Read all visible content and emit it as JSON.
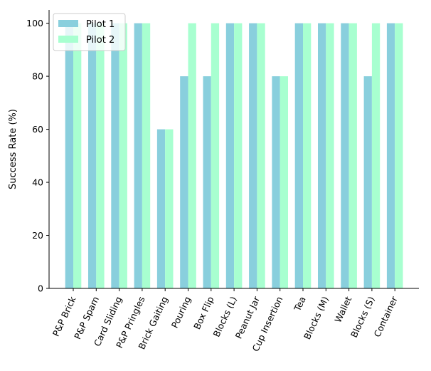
{
  "chart_data": {
    "type": "bar",
    "title": "",
    "xlabel": "",
    "ylabel": "Success Rate (%)",
    "ylim": [
      0,
      105
    ],
    "yticks": [
      0,
      20,
      40,
      60,
      80,
      100
    ],
    "grid": false,
    "legend_position": "top-left",
    "categories": [
      "P&P Brick",
      "P&P Spam",
      "Card Sliding",
      "P&P Pringles",
      "Brick Gaiting",
      "Pouring",
      "Box Flip",
      "Blocks (L)",
      "Peanut Jar",
      "Cup Insertion",
      "Tea",
      "Blocks (M)",
      "Wallet",
      "Blocks (S)",
      "Container"
    ],
    "series": [
      {
        "name": "Pilot 1",
        "color": "#89CFDD",
        "values": [
          100,
          100,
          100,
          100,
          60,
          80,
          80,
          100,
          100,
          80,
          100,
          100,
          100,
          80,
          100
        ]
      },
      {
        "name": "Pilot 2",
        "color": "#A8FFD0",
        "values": [
          100,
          100,
          100,
          100,
          60,
          100,
          100,
          100,
          100,
          80,
          100,
          100,
          100,
          100,
          100
        ]
      }
    ]
  }
}
